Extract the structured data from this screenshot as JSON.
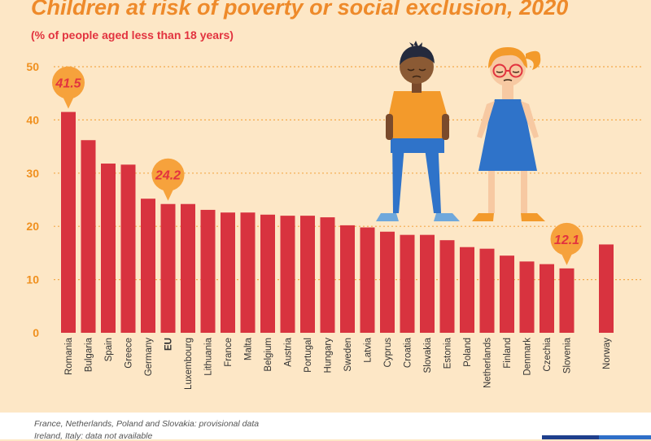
{
  "title": "Children at risk of poverty or social exclusion, 2020",
  "subtitle": "(% of people aged less than 18 years)",
  "notes": [
    "France, Netherlands, Poland and Slovakia: provisional data",
    "Ireland, Italy: data not available"
  ],
  "colors": {
    "bar": "#d8333f",
    "axis_text": "#f0901e",
    "title": "#ee8a2a",
    "callout_bubble": "#f6a23c",
    "callout_text": "#e2333f",
    "gridline": "#f4a94a"
  },
  "chart_data": {
    "type": "bar",
    "title": "Children at risk of poverty or social exclusion, 2020",
    "subtitle": "(% of people aged less than 18 years)",
    "xlabel": "",
    "ylabel": "",
    "ylim": [
      0,
      50
    ],
    "yticks": [
      0,
      10,
      20,
      30,
      40,
      50
    ],
    "grid": "horizontal dotted",
    "categories": [
      "Romania",
      "Bulgaria",
      "Spain",
      "Greece",
      "Germany",
      "EU",
      "Luxembourg",
      "Lithuania",
      "France",
      "Malta",
      "Belgium",
      "Austria",
      "Portugal",
      "Hungary",
      "Sweden",
      "Latvia",
      "Cyprus",
      "Croatia",
      "Slovakia",
      "Estonia",
      "Poland",
      "Netherlands",
      "Finland",
      "Denmark",
      "Czechia",
      "Slovenia",
      "Norway"
    ],
    "values": [
      41.5,
      36.2,
      31.8,
      31.6,
      25.2,
      24.2,
      24.2,
      23.1,
      22.6,
      22.6,
      22.2,
      22.0,
      22.0,
      21.7,
      20.2,
      19.8,
      19.0,
      18.4,
      18.4,
      17.4,
      16.1,
      15.8,
      14.5,
      13.4,
      12.9,
      12.1,
      16.6
    ],
    "highlighted_categories": [
      "EU"
    ],
    "callouts": [
      {
        "category": "Romania",
        "label": "41.5"
      },
      {
        "category": "EU",
        "label": "24.2"
      },
      {
        "category": "Slovenia",
        "label": "12.1"
      }
    ]
  },
  "illustration": {
    "boy_icon": "boy-figure-icon",
    "girl_icon": "girl-figure-icon"
  }
}
